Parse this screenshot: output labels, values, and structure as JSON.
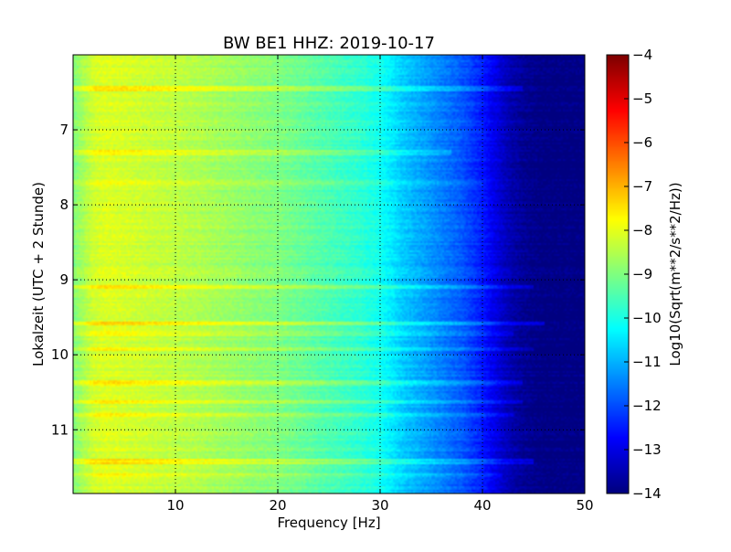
{
  "chart_data": {
    "type": "heatmap",
    "title": "BW BE1 HHZ: 2019-10-17",
    "xlabel": "Frequency [Hz]",
    "ylabel": "Lokalzeit (UTC + 2 Stunde)",
    "xlim": [
      0,
      50
    ],
    "ylim": [
      6.0,
      11.85
    ],
    "y_inverted": true,
    "x_ticks": [
      10,
      20,
      30,
      40,
      50
    ],
    "x_tick_labels": [
      "10",
      "20",
      "30",
      "40",
      "50"
    ],
    "y_ticks": [
      7,
      8,
      9,
      10,
      11
    ],
    "y_tick_labels": [
      "7",
      "8",
      "9",
      "10",
      "11"
    ],
    "grid": true,
    "colormap": "jet",
    "colorbar": {
      "label": "Log10(Sqrt(m**2/s**2/Hz))",
      "range": [
        -14,
        -4
      ],
      "ticks": [
        -14,
        -13,
        -12,
        -11,
        -10,
        -9,
        -8,
        -7,
        -6,
        -5,
        -4
      ],
      "tick_labels": [
        "−14",
        "−13",
        "−12",
        "−11",
        "−10",
        "−9",
        "−8",
        "−7",
        "−6",
        "−5",
        "−4"
      ]
    },
    "spectrum_profile": {
      "frequency_hz": [
        0,
        1,
        2,
        3,
        4,
        6,
        8,
        10,
        12,
        15,
        18,
        20,
        22,
        25,
        28,
        30,
        31,
        32,
        33,
        34,
        35,
        36,
        37,
        38,
        39,
        40,
        41,
        42,
        43,
        44,
        45,
        46,
        47,
        50
      ],
      "log10_amplitude": [
        -9.0,
        -8.6,
        -8.2,
        -8.1,
        -8.1,
        -8.2,
        -8.3,
        -8.4,
        -8.5,
        -8.7,
        -8.9,
        -9.0,
        -9.2,
        -9.5,
        -9.8,
        -10.1,
        -10.4,
        -10.7,
        -10.9,
        -11.1,
        -11.3,
        -11.5,
        -11.7,
        -11.9,
        -12.2,
        -12.5,
        -12.9,
        -13.3,
        -13.6,
        -13.8,
        -13.9,
        -14.0,
        -14.0,
        -14.0
      ]
    },
    "bright_time_bands": [
      {
        "time": 6.45,
        "boost": 0.55,
        "fmax_hz": 44
      },
      {
        "time": 7.3,
        "boost": 0.5,
        "fmax_hz": 37
      },
      {
        "time": 7.7,
        "boost": 0.3,
        "fmax_hz": 40
      },
      {
        "time": 9.1,
        "boost": 0.6,
        "fmax_hz": 45
      },
      {
        "time": 9.58,
        "boost": 0.7,
        "fmax_hz": 46
      },
      {
        "time": 9.72,
        "boost": 0.4,
        "fmax_hz": 43
      },
      {
        "time": 9.92,
        "boost": 0.6,
        "fmax_hz": 45
      },
      {
        "time": 10.38,
        "boost": 0.55,
        "fmax_hz": 44
      },
      {
        "time": 10.63,
        "boost": 0.55,
        "fmax_hz": 44
      },
      {
        "time": 10.8,
        "boost": 0.5,
        "fmax_hz": 43
      },
      {
        "time": 11.42,
        "boost": 0.65,
        "fmax_hz": 45
      },
      {
        "time": 11.6,
        "boost": 0.35,
        "fmax_hz": 42
      }
    ]
  }
}
